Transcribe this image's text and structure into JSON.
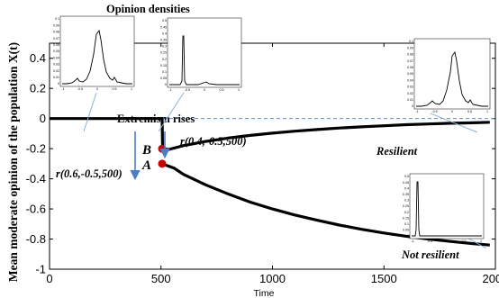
{
  "chart_data": {
    "type": "line",
    "title": "",
    "xlabel": "Time",
    "ylabel": "Mean moderate opinion of the population X(t)",
    "xlim": [
      0,
      2000
    ],
    "ylim": [
      -1,
      0.5
    ],
    "x_ticks": [
      "0",
      "500",
      "1000",
      "1500",
      "2000"
    ],
    "y_ticks": [
      "0.4",
      "0.2",
      "0",
      "-0.2",
      "-0.4",
      "-0.6",
      "-0.8",
      "-1"
    ],
    "grid": false,
    "reference_line_y": 0,
    "series": [
      {
        "points": [
          [
            0,
            0
          ],
          [
            505,
            0
          ],
          [
            507,
            -0.2
          ],
          [
            535,
            -0.205
          ],
          [
            600,
            -0.18
          ],
          [
            700,
            -0.152
          ],
          [
            800,
            -0.13
          ],
          [
            900,
            -0.112
          ],
          [
            1000,
            -0.097
          ],
          [
            1100,
            -0.084
          ],
          [
            1200,
            -0.073
          ],
          [
            1300,
            -0.063
          ],
          [
            1400,
            -0.055
          ],
          [
            1500,
            -0.048
          ],
          [
            1600,
            -0.041
          ],
          [
            1700,
            -0.036
          ],
          [
            1800,
            -0.031
          ],
          [
            1900,
            -0.028
          ],
          [
            1975,
            -0.025
          ]
        ]
      },
      {
        "points": [
          [
            505,
            -0.3
          ],
          [
            560,
            -0.33
          ],
          [
            600,
            -0.37
          ],
          [
            700,
            -0.44
          ],
          [
            800,
            -0.5
          ],
          [
            900,
            -0.555
          ],
          [
            1000,
            -0.6
          ],
          [
            1100,
            -0.64
          ],
          [
            1200,
            -0.675
          ],
          [
            1300,
            -0.707
          ],
          [
            1400,
            -0.735
          ],
          [
            1500,
            -0.76
          ],
          [
            1600,
            -0.781
          ],
          [
            1700,
            -0.8
          ],
          [
            1800,
            -0.816
          ],
          [
            1900,
            -0.83
          ],
          [
            1975,
            -0.84
          ]
        ]
      }
    ],
    "markers": [
      {
        "label": "A",
        "x": 505,
        "y": -0.3,
        "color": "#cc0000"
      },
      {
        "label": "B",
        "x": 505,
        "y": -0.2,
        "color": "#cc0000"
      }
    ],
    "annotations": {
      "densities_title": "Opinion densities",
      "extremism": "Extremism rises",
      "r1": "r(0.4,-0.5,500)",
      "r2": "r(0.6,-0.5,500)",
      "resilient": "Resilient",
      "not_resilient": "Not resilient"
    },
    "colors": {
      "curve": "#000000",
      "marker": "#cc0000",
      "arrow": "#4a7ec2",
      "reference": "#5b8fd3"
    },
    "insets": {
      "y_ticks_a": [
        "0.1",
        "0.09",
        "0.08",
        "0.07",
        "0.06",
        "0.05",
        "0.04",
        "0.03",
        "0.02",
        "0.01",
        "0"
      ],
      "y_ticks_b": [
        "0.5",
        "0.45",
        "0.4",
        "0.35",
        "0.3",
        "0.25",
        "0.2",
        "0.15",
        "0.1",
        "0.05",
        "0"
      ],
      "x_ticks": [
        "-1",
        "-0.5",
        "0",
        "0.5",
        "1"
      ]
    }
  }
}
